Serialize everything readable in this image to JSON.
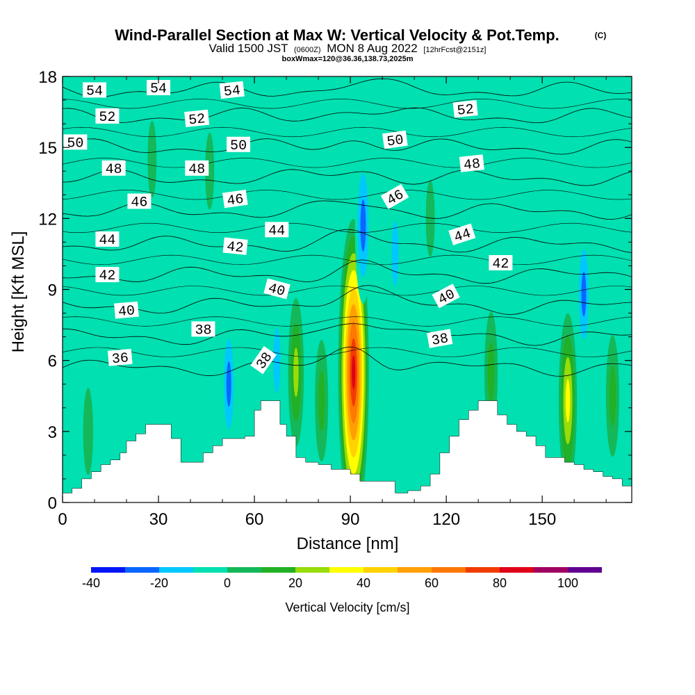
{
  "title": {
    "main": "Wind-Parallel Section at Max W: Vertical Velocity & Pot.Temp.",
    "main_suffix": "(C)",
    "valid_prefix": "Valid 1500 JST",
    "valid_zulu": "(0600Z)",
    "valid_date": "MON 8 Aug 2022",
    "forecast_tag": "[12hrFcst@2151z]",
    "box_info": "boxWmax=120@36.36,138.73,2025m"
  },
  "colors": {
    "zero_band": "#00e0b0",
    "terrain": "#ffffff",
    "contour": "#000000",
    "label_bg": "#ffffff"
  },
  "chart_data": {
    "type": "heatmap",
    "xlabel": "Distance [nm]",
    "ylabel": "Height [Kft MSL]",
    "xlim": [
      0,
      178
    ],
    "ylim": [
      0,
      18
    ],
    "x_ticks": [
      0,
      30,
      60,
      90,
      120,
      150
    ],
    "x_tick_labels": [
      "0",
      "30",
      "60",
      "90",
      "120",
      "150"
    ],
    "y_ticks": [
      0,
      3,
      6,
      9,
      12,
      15,
      18
    ],
    "y_tick_labels": [
      "0",
      "3",
      "6",
      "9",
      "12",
      "15",
      "18"
    ],
    "colorbar": {
      "label": "Vertical Velocity [cm/s]",
      "tick_values": [
        -40,
        -20,
        0,
        20,
        40,
        60,
        80,
        100
      ],
      "tick_labels": [
        "-40",
        "-20",
        "0",
        "20",
        "40",
        "60",
        "80",
        "100"
      ],
      "bins": [
        {
          "min": -40,
          "max": -30,
          "color": "#0016f5"
        },
        {
          "min": -30,
          "max": -20,
          "color": "#0a66ff"
        },
        {
          "min": -20,
          "max": -10,
          "color": "#00c8ff"
        },
        {
          "min": -10,
          "max": 0,
          "color": "#00e0b0"
        },
        {
          "min": 0,
          "max": 10,
          "color": "#14b85a"
        },
        {
          "min": 10,
          "max": 20,
          "color": "#22b024"
        },
        {
          "min": 20,
          "max": 30,
          "color": "#98dc0a"
        },
        {
          "min": 30,
          "max": 40,
          "color": "#ffff00"
        },
        {
          "min": 40,
          "max": 50,
          "color": "#ffd200"
        },
        {
          "min": 50,
          "max": 60,
          "color": "#ffa000"
        },
        {
          "min": 60,
          "max": 70,
          "color": "#ff7800"
        },
        {
          "min": 70,
          "max": 80,
          "color": "#f03c00"
        },
        {
          "min": 80,
          "max": 90,
          "color": "#e00018"
        },
        {
          "min": 90,
          "max": 100,
          "color": "#a00060"
        },
        {
          "min": 100,
          "max": 110,
          "color": "#600090"
        }
      ]
    },
    "vertical_velocity_features": [
      {
        "x": 91,
        "y": 5.5,
        "peak": 95
      },
      {
        "x": 73,
        "y": 5.5,
        "peak": 35
      },
      {
        "x": 158,
        "y": 4.3,
        "peak": 45
      },
      {
        "x": 81,
        "y": 4.3,
        "peak": 25
      },
      {
        "x": 134,
        "y": 5.5,
        "peak": 25
      },
      {
        "x": 172,
        "y": 4.5,
        "peak": 25
      },
      {
        "x": 94,
        "y": 11.7,
        "peak": -38
      },
      {
        "x": 104,
        "y": 10.5,
        "peak": -28
      },
      {
        "x": 109,
        "y": 8.5,
        "peak": -18
      },
      {
        "x": 65,
        "y": 7.0,
        "peak": -18
      },
      {
        "x": 52,
        "y": 5.0,
        "peak": -30
      },
      {
        "x": 67,
        "y": 6.0,
        "peak": -28
      },
      {
        "x": 163,
        "y": 8.8,
        "peak": -30
      },
      {
        "x": 144,
        "y": 13.0,
        "peak": -12
      },
      {
        "x": 100,
        "y": 16.0,
        "peak": -12
      },
      {
        "x": 8,
        "y": 3.0,
        "peak": 12
      },
      {
        "x": 28,
        "y": 14.5,
        "peak": 8
      },
      {
        "x": 46,
        "y": 14.0,
        "peak": 8
      },
      {
        "x": 115,
        "y": 12.0,
        "peak": 8
      }
    ],
    "terrain_ft": {
      "x": [
        0,
        3,
        6,
        9,
        12,
        15,
        18,
        20,
        23,
        26,
        30,
        34,
        37,
        40,
        44,
        47,
        50,
        54,
        57,
        60,
        62,
        65,
        68,
        70,
        73,
        76,
        80,
        84,
        87,
        90,
        93,
        96,
        100,
        104,
        108,
        112,
        115,
        118,
        121,
        124,
        127,
        130,
        133,
        136,
        139,
        142,
        145,
        148,
        151,
        154,
        157,
        160,
        163,
        166,
        169,
        172,
        175,
        178
      ],
      "kft": [
        0.4,
        0.6,
        1.0,
        1.3,
        1.6,
        1.8,
        2.1,
        2.6,
        2.9,
        3.3,
        3.3,
        2.7,
        1.7,
        1.7,
        2.1,
        2.4,
        2.7,
        2.7,
        2.8,
        3.9,
        4.3,
        4.3,
        3.3,
        2.8,
        1.9,
        1.7,
        1.6,
        1.4,
        1.4,
        1.2,
        0.9,
        0.9,
        0.9,
        0.4,
        0.5,
        0.7,
        1.2,
        2.1,
        2.8,
        3.5,
        3.9,
        4.3,
        4.3,
        3.7,
        3.3,
        3.0,
        2.8,
        2.4,
        1.9,
        1.9,
        1.7,
        1.6,
        1.4,
        1.3,
        1.1,
        1.0,
        0.7,
        0.7
      ]
    },
    "isentropes": [
      {
        "theta": 36,
        "base_kft": 5.7
      },
      {
        "theta": 38,
        "base_kft": 7.0
      },
      {
        "theta": 40,
        "base_kft": 8.3
      },
      {
        "theta": 42,
        "base_kft": 9.6
      },
      {
        "theta": 44,
        "base_kft": 10.9
      },
      {
        "theta": 46,
        "base_kft": 12.3
      },
      {
        "theta": 48,
        "base_kft": 13.7
      },
      {
        "theta": 50,
        "base_kft": 15.0
      },
      {
        "theta": 52,
        "base_kft": 16.3
      },
      {
        "theta": 54,
        "base_kft": 17.4
      }
    ],
    "contour_labels": [
      {
        "text": "54",
        "x": 10,
        "y": 17.4,
        "rot": 0
      },
      {
        "text": "54",
        "x": 30,
        "y": 17.5,
        "rot": 0
      },
      {
        "text": "54",
        "x": 53,
        "y": 17.4,
        "rot": -6
      },
      {
        "text": "52",
        "x": 14,
        "y": 16.3,
        "rot": 0
      },
      {
        "text": "52",
        "x": 42,
        "y": 16.2,
        "rot": -6
      },
      {
        "text": "52",
        "x": 126,
        "y": 16.6,
        "rot": -6
      },
      {
        "text": "50",
        "x": 4,
        "y": 15.2,
        "rot": 0
      },
      {
        "text": "50",
        "x": 55,
        "y": 15.1,
        "rot": 0
      },
      {
        "text": "50",
        "x": 104,
        "y": 15.3,
        "rot": -8
      },
      {
        "text": "48",
        "x": 16,
        "y": 14.1,
        "rot": 0
      },
      {
        "text": "48",
        "x": 42,
        "y": 14.1,
        "rot": 0
      },
      {
        "text": "48",
        "x": 128,
        "y": 14.3,
        "rot": -6
      },
      {
        "text": "46",
        "x": 24,
        "y": 12.7,
        "rot": 0
      },
      {
        "text": "46",
        "x": 54,
        "y": 12.8,
        "rot": -8
      },
      {
        "text": "46",
        "x": 104,
        "y": 12.9,
        "rot": -30
      },
      {
        "text": "44",
        "x": 14,
        "y": 11.1,
        "rot": 0
      },
      {
        "text": "44",
        "x": 67,
        "y": 11.5,
        "rot": 0
      },
      {
        "text": "44",
        "x": 125,
        "y": 11.3,
        "rot": -18
      },
      {
        "text": "42",
        "x": 14,
        "y": 9.6,
        "rot": 0
      },
      {
        "text": "42",
        "x": 54,
        "y": 10.8,
        "rot": 6
      },
      {
        "text": "42",
        "x": 137,
        "y": 10.1,
        "rot": 0
      },
      {
        "text": "40",
        "x": 20,
        "y": 8.1,
        "rot": -5
      },
      {
        "text": "40",
        "x": 67,
        "y": 9.0,
        "rot": 15
      },
      {
        "text": "40",
        "x": 120,
        "y": 8.7,
        "rot": -28
      },
      {
        "text": "38",
        "x": 44,
        "y": 7.3,
        "rot": 0
      },
      {
        "text": "38",
        "x": 118,
        "y": 6.9,
        "rot": -10
      },
      {
        "text": "38",
        "x": 63,
        "y": 6.0,
        "rot": -55
      },
      {
        "text": "36",
        "x": 18,
        "y": 6.1,
        "rot": -5
      }
    ]
  }
}
